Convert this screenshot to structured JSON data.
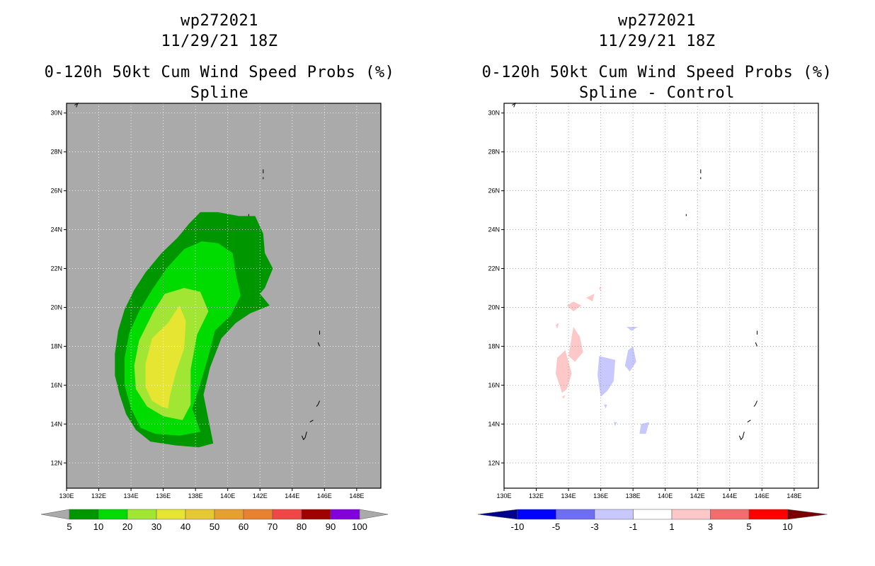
{
  "chart_data": [
    {
      "type": "contour-map",
      "storm_id": "wp272021",
      "date": "11/29/21 18Z",
      "title": "0-120h 50kt Cum Wind Speed Probs (%)",
      "subtitle": "Spline",
      "lon_range": [
        130,
        149.5
      ],
      "lat_range": [
        10.7,
        30.5
      ],
      "x_ticks": [
        "130E",
        "132E",
        "134E",
        "136E",
        "138E",
        "140E",
        "142E",
        "144E",
        "146E",
        "148E"
      ],
      "y_ticks": [
        "12N",
        "14N",
        "16N",
        "18N",
        "20N",
        "22N",
        "24N",
        "26N",
        "28N",
        "30N"
      ],
      "background_color": "#aaaaaa",
      "colorbar": {
        "labels": [
          "5",
          "10",
          "20",
          "30",
          "40",
          "50",
          "60",
          "70",
          "80",
          "90",
          "100"
        ],
        "colors": [
          "#009600",
          "#00dc00",
          "#a0e632",
          "#e6e632",
          "#e6c832",
          "#e6a032",
          "#e68232",
          "#f04646",
          "#a00000",
          "#8200dc"
        ],
        "end_color": "#aaaaaa"
      },
      "contours": [
        {
          "level": 5,
          "color": "#009600",
          "points": [
            [
              136.9,
              23.6
            ],
            [
              137.6,
              24.3
            ],
            [
              138.3,
              24.9
            ],
            [
              139.4,
              24.9
            ],
            [
              140.7,
              24.7
            ],
            [
              141.7,
              24.7
            ],
            [
              142.2,
              23.8
            ],
            [
              142.3,
              22.8
            ],
            [
              142.8,
              22.0
            ],
            [
              142.3,
              21.0
            ],
            [
              142.0,
              20.7
            ],
            [
              142.6,
              20.1
            ],
            [
              141.4,
              19.7
            ],
            [
              140.5,
              19.2
            ],
            [
              139.6,
              18.4
            ],
            [
              138.9,
              16.9
            ],
            [
              138.5,
              15.5
            ],
            [
              139.1,
              13.0
            ],
            [
              138.2,
              12.8
            ],
            [
              136.8,
              12.9
            ],
            [
              135.2,
              13.1
            ],
            [
              134.3,
              13.7
            ],
            [
              133.7,
              14.5
            ],
            [
              133.3,
              15.5
            ],
            [
              133.0,
              16.5
            ],
            [
              133.0,
              17.6
            ],
            [
              133.2,
              18.8
            ],
            [
              133.6,
              19.9
            ],
            [
              134.2,
              20.9
            ],
            [
              134.9,
              21.8
            ],
            [
              135.9,
              22.8
            ]
          ]
        },
        {
          "level": 10,
          "color": "#00dc00",
          "points": [
            [
              137.3,
              23.0
            ],
            [
              138.4,
              23.4
            ],
            [
              139.4,
              23.3
            ],
            [
              140.3,
              22.8
            ],
            [
              140.5,
              21.7
            ],
            [
              140.8,
              20.6
            ],
            [
              140.2,
              19.6
            ],
            [
              139.2,
              18.8
            ],
            [
              138.8,
              17.5
            ],
            [
              138.2,
              15.8
            ],
            [
              137.8,
              14.8
            ],
            [
              138.3,
              13.6
            ],
            [
              137.0,
              13.4
            ],
            [
              135.5,
              13.5
            ],
            [
              134.6,
              13.8
            ],
            [
              134.0,
              14.8
            ],
            [
              133.6,
              16.0
            ],
            [
              133.6,
              17.4
            ],
            [
              133.9,
              18.7
            ],
            [
              134.5,
              19.8
            ],
            [
              135.3,
              20.9
            ],
            [
              136.2,
              22.0
            ]
          ]
        },
        {
          "level": 20,
          "color": "#a0e632",
          "points": [
            [
              135.4,
              19.8
            ],
            [
              136.1,
              20.7
            ],
            [
              137.3,
              21.0
            ],
            [
              138.3,
              20.8
            ],
            [
              138.8,
              19.8
            ],
            [
              138.1,
              18.6
            ],
            [
              137.7,
              16.8
            ],
            [
              137.7,
              15.0
            ],
            [
              137.2,
              14.2
            ],
            [
              136.0,
              14.4
            ],
            [
              135.0,
              14.9
            ],
            [
              134.3,
              15.8
            ],
            [
              134.2,
              17.0
            ],
            [
              134.5,
              18.3
            ]
          ]
        },
        {
          "level": 30,
          "color": "#e6e632",
          "points": [
            [
              136.3,
              19.2
            ],
            [
              137.0,
              20.1
            ],
            [
              137.4,
              19.3
            ],
            [
              137.3,
              17.9
            ],
            [
              136.8,
              16.7
            ],
            [
              136.4,
              15.4
            ],
            [
              136.3,
              14.8
            ],
            [
              135.9,
              14.9
            ],
            [
              135.3,
              15.2
            ],
            [
              134.9,
              15.9
            ],
            [
              134.9,
              17.1
            ],
            [
              135.3,
              18.4
            ]
          ]
        }
      ],
      "islands": [
        {
          "name": "",
          "points": [
            [
              130.5,
              30.4
            ],
            [
              130.7,
              30.5
            ],
            [
              130.6,
              30.3
            ]
          ]
        },
        {
          "name": "",
          "points": [
            [
              142.2,
              27.1
            ],
            [
              142.2,
              26.9
            ]
          ]
        },
        {
          "name": "",
          "points": [
            [
              142.2,
              26.7
            ],
            [
              142.2,
              26.6
            ]
          ]
        },
        {
          "name": "",
          "points": [
            [
              141.3,
              24.8
            ],
            [
              141.3,
              24.7
            ]
          ]
        },
        {
          "name": "",
          "points": [
            [
              145.7,
              18.8
            ],
            [
              145.7,
              18.6
            ]
          ]
        },
        {
          "name": "",
          "points": [
            [
              145.6,
              18.2
            ],
            [
              145.7,
              18.0
            ]
          ]
        },
        {
          "name": "",
          "points": [
            [
              145.7,
              15.2
            ],
            [
              145.6,
              15.0
            ],
            [
              145.5,
              14.9
            ]
          ]
        },
        {
          "name": "",
          "points": [
            [
              145.3,
              14.2
            ],
            [
              145.1,
              14.1
            ]
          ]
        },
        {
          "name": "",
          "points": [
            [
              144.9,
              13.6
            ],
            [
              144.8,
              13.3
            ],
            [
              144.7,
              13.2
            ],
            [
              144.6,
              13.4
            ]
          ]
        }
      ]
    },
    {
      "type": "contour-map",
      "storm_id": "wp272021",
      "date": "11/29/21 18Z",
      "title": "0-120h 50kt Cum Wind Speed Probs (%)",
      "subtitle": "Spline - Control",
      "lon_range": [
        130,
        149.5
      ],
      "lat_range": [
        10.7,
        30.5
      ],
      "x_ticks": [
        "130E",
        "132E",
        "134E",
        "136E",
        "138E",
        "140E",
        "142E",
        "144E",
        "146E",
        "148E"
      ],
      "y_ticks": [
        "12N",
        "14N",
        "16N",
        "18N",
        "20N",
        "22N",
        "24N",
        "26N",
        "28N",
        "30N"
      ],
      "background_color": "#ffffff",
      "colorbar": {
        "labels": [
          "-10",
          "-5",
          "-3",
          "-1",
          "1",
          "3",
          "5",
          "10"
        ],
        "colors": [
          "#0000ff",
          "#6e6ef0",
          "#c8c8ff",
          "#ffffff",
          "#ffc8c8",
          "#f06e6e",
          "#ff0000"
        ],
        "end_low_color": "#00008c",
        "end_high_color": "#780000"
      },
      "patches": [
        {
          "sign": "positive",
          "color": "#ffc8c8",
          "points": [
            [
              133.3,
              17.4
            ],
            [
              133.8,
              17.8
            ],
            [
              134.2,
              16.6
            ],
            [
              133.9,
              15.8
            ],
            [
              133.6,
              15.6
            ],
            [
              133.2,
              16.6
            ]
          ]
        },
        {
          "sign": "positive",
          "color": "#ffc8c8",
          "points": [
            [
              134.0,
              17.5
            ],
            [
              134.3,
              19.0
            ],
            [
              134.7,
              18.5
            ],
            [
              134.9,
              17.7
            ],
            [
              134.4,
              17.2
            ]
          ]
        },
        {
          "sign": "positive",
          "color": "#ffc8c8",
          "points": [
            [
              133.9,
              20.1
            ],
            [
              134.3,
              20.3
            ],
            [
              134.8,
              20.1
            ],
            [
              134.3,
              19.8
            ]
          ]
        },
        {
          "sign": "positive",
          "color": "#ffc8c8",
          "points": [
            [
              135.1,
              20.5
            ],
            [
              135.6,
              20.7
            ],
            [
              135.5,
              20.3
            ]
          ]
        },
        {
          "sign": "positive",
          "color": "#ffc8c8",
          "points": [
            [
              135.9,
              21.0
            ],
            [
              136.0,
              21.1
            ],
            [
              136.0,
              20.8
            ]
          ]
        },
        {
          "sign": "positive",
          "color": "#ffc8c8",
          "points": [
            [
              133.2,
              19.1
            ],
            [
              133.4,
              19.2
            ],
            [
              133.3,
              18.9
            ]
          ]
        },
        {
          "sign": "positive",
          "color": "#ffc8c8",
          "points": [
            [
              133.6,
              15.4
            ],
            [
              133.8,
              15.5
            ],
            [
              133.7,
              15.3
            ]
          ]
        },
        {
          "sign": "negative",
          "color": "#c8c8ff",
          "points": [
            [
              135.9,
              17.5
            ],
            [
              136.9,
              17.3
            ],
            [
              136.8,
              16.2
            ],
            [
              136.4,
              15.7
            ],
            [
              136.0,
              15.4
            ],
            [
              135.8,
              16.5
            ]
          ]
        },
        {
          "sign": "negative",
          "color": "#c8c8ff",
          "points": [
            [
              137.7,
              17.8
            ],
            [
              138.0,
              18.0
            ],
            [
              138.2,
              17.2
            ],
            [
              137.8,
              16.7
            ],
            [
              137.5,
              17.0
            ]
          ]
        },
        {
          "sign": "negative",
          "color": "#c8c8ff",
          "points": [
            [
              137.6,
              19.0
            ],
            [
              138.3,
              19.0
            ],
            [
              137.9,
              18.8
            ]
          ]
        },
        {
          "sign": "negative",
          "color": "#c8c8ff",
          "points": [
            [
              138.5,
              14.0
            ],
            [
              139.0,
              14.1
            ],
            [
              138.8,
              13.5
            ],
            [
              138.4,
              13.5
            ]
          ]
        },
        {
          "sign": "negative",
          "color": "#c8c8ff",
          "points": [
            [
              136.8,
              14.1
            ],
            [
              137.0,
              14.1
            ],
            [
              136.9,
              13.9
            ]
          ]
        },
        {
          "sign": "negative",
          "color": "#c8c8ff",
          "points": [
            [
              136.2,
              15.0
            ],
            [
              136.4,
              15.0
            ],
            [
              136.3,
              14.8
            ]
          ]
        }
      ],
      "islands": [
        {
          "name": "",
          "points": [
            [
              130.5,
              30.4
            ],
            [
              130.7,
              30.5
            ],
            [
              130.6,
              30.3
            ]
          ]
        },
        {
          "name": "",
          "points": [
            [
              142.2,
              27.1
            ],
            [
              142.2,
              26.9
            ]
          ]
        },
        {
          "name": "",
          "points": [
            [
              142.2,
              26.7
            ],
            [
              142.2,
              26.6
            ]
          ]
        },
        {
          "name": "",
          "points": [
            [
              141.3,
              24.8
            ],
            [
              141.3,
              24.7
            ]
          ]
        },
        {
          "name": "",
          "points": [
            [
              145.7,
              18.8
            ],
            [
              145.7,
              18.6
            ]
          ]
        },
        {
          "name": "",
          "points": [
            [
              145.6,
              18.2
            ],
            [
              145.7,
              18.0
            ]
          ]
        },
        {
          "name": "",
          "points": [
            [
              145.7,
              15.2
            ],
            [
              145.6,
              15.0
            ],
            [
              145.5,
              14.9
            ]
          ]
        },
        {
          "name": "",
          "points": [
            [
              145.3,
              14.2
            ],
            [
              145.1,
              14.1
            ]
          ]
        },
        {
          "name": "",
          "points": [
            [
              144.9,
              13.6
            ],
            [
              144.8,
              13.3
            ],
            [
              144.7,
              13.2
            ],
            [
              144.6,
              13.4
            ]
          ]
        }
      ]
    }
  ]
}
